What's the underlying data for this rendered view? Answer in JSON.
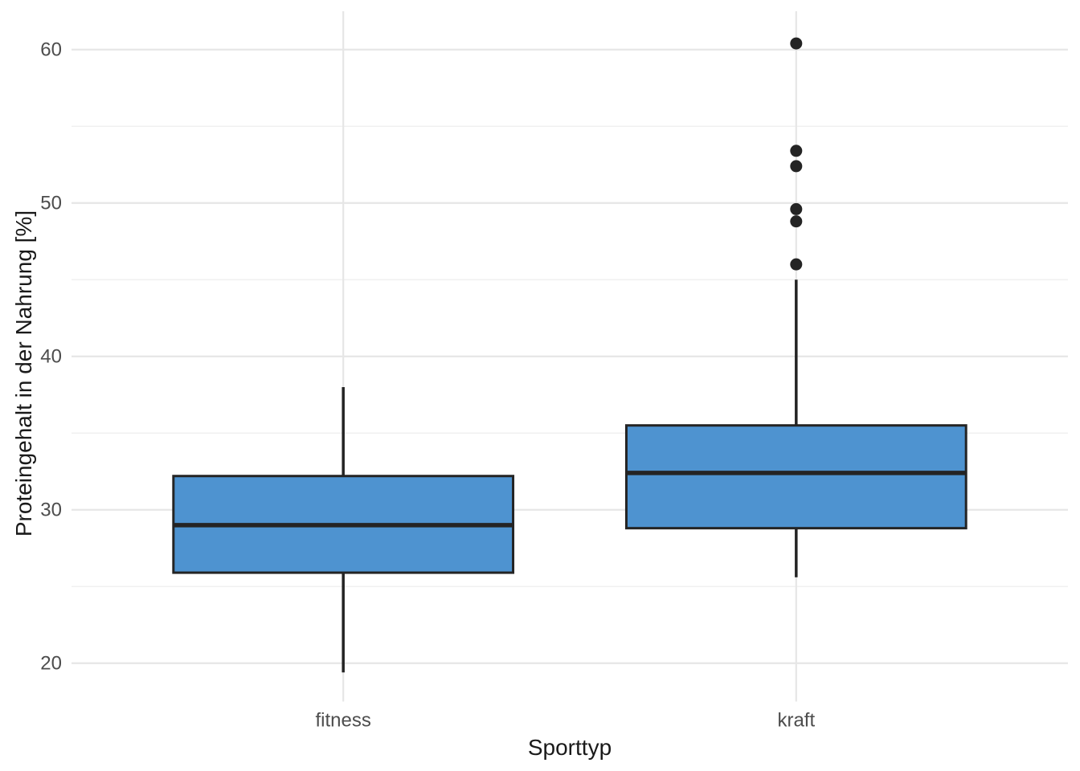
{
  "figure": {
    "background": "#ffffff"
  },
  "chart_data": {
    "type": "boxplot",
    "title": "",
    "xlabel": "Sporttyp",
    "ylabel": "Proteingehalt in der Nahrung [%]",
    "categories": [
      "fitness",
      "kraft"
    ],
    "series": [
      {
        "category": "fitness",
        "whisker_low": 19.4,
        "q1": 25.9,
        "median": 29.0,
        "q3": 32.2,
        "whisker_high": 38.0,
        "outliers": []
      },
      {
        "category": "kraft",
        "whisker_low": 25.6,
        "q1": 28.8,
        "median": 32.4,
        "q3": 35.5,
        "whisker_high": 45.0,
        "outliers": [
          46.0,
          48.8,
          49.6,
          52.4,
          53.4,
          60.4
        ]
      }
    ],
    "y_axis": {
      "major_ticks": [
        20,
        30,
        40,
        50,
        60
      ],
      "minor_ticks": [
        25,
        35,
        45,
        55
      ],
      "ylim": [
        17.5,
        62.5
      ]
    },
    "legend": "none",
    "grid": {
      "major": true,
      "minor": true,
      "vertical_at_categories": true
    }
  },
  "style": {
    "box_fill": "#4E93D0",
    "box_stroke": "#242424",
    "outlier_color": "#242424",
    "grid_major_color": "#e6e6e6",
    "grid_minor_color": "#f0f0f0",
    "tick_label_color": "#4d4d4d",
    "axis_title_color": "#1a1a1a"
  }
}
